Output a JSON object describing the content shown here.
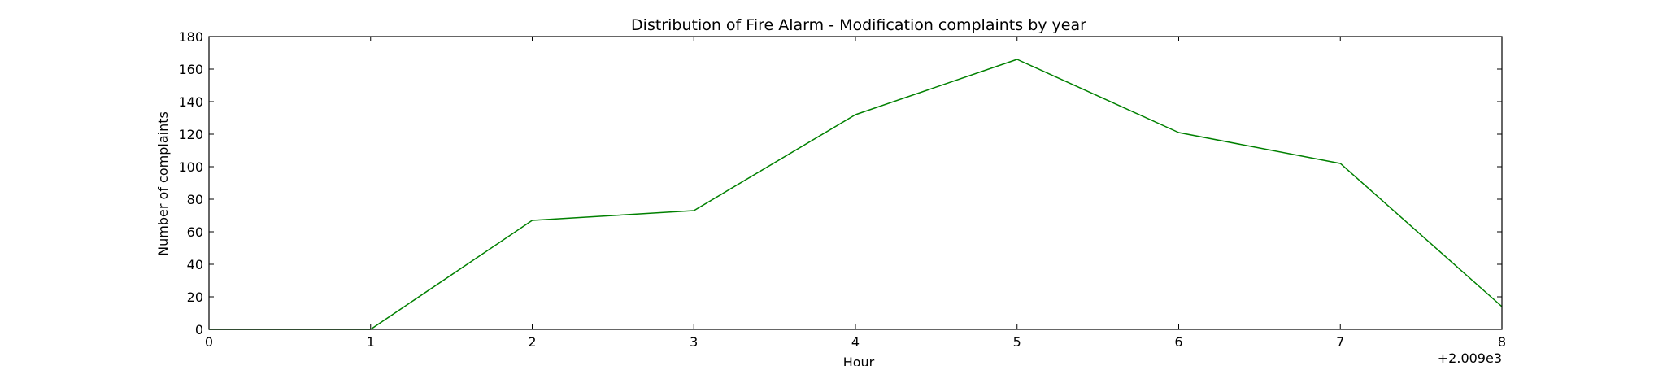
{
  "chart_data": {
    "type": "line",
    "title": "Distribution of  Fire Alarm - Modification complaints by year",
    "xlabel": "Hour",
    "ylabel": "Number of complaints",
    "x_offset_label": "+2.009e3",
    "xlim": [
      0,
      8
    ],
    "ylim": [
      0,
      180
    ],
    "xticks": [
      0,
      1,
      2,
      3,
      4,
      5,
      6,
      7,
      8
    ],
    "yticks": [
      0,
      20,
      40,
      60,
      80,
      100,
      120,
      140,
      160,
      180
    ],
    "grid": false,
    "series": [
      {
        "color": "#008000",
        "x": [
          0,
          1,
          2,
          3,
          4,
          5,
          6,
          7,
          8
        ],
        "y": [
          0,
          0,
          67,
          73,
          132,
          166,
          121,
          102,
          14
        ]
      }
    ]
  }
}
